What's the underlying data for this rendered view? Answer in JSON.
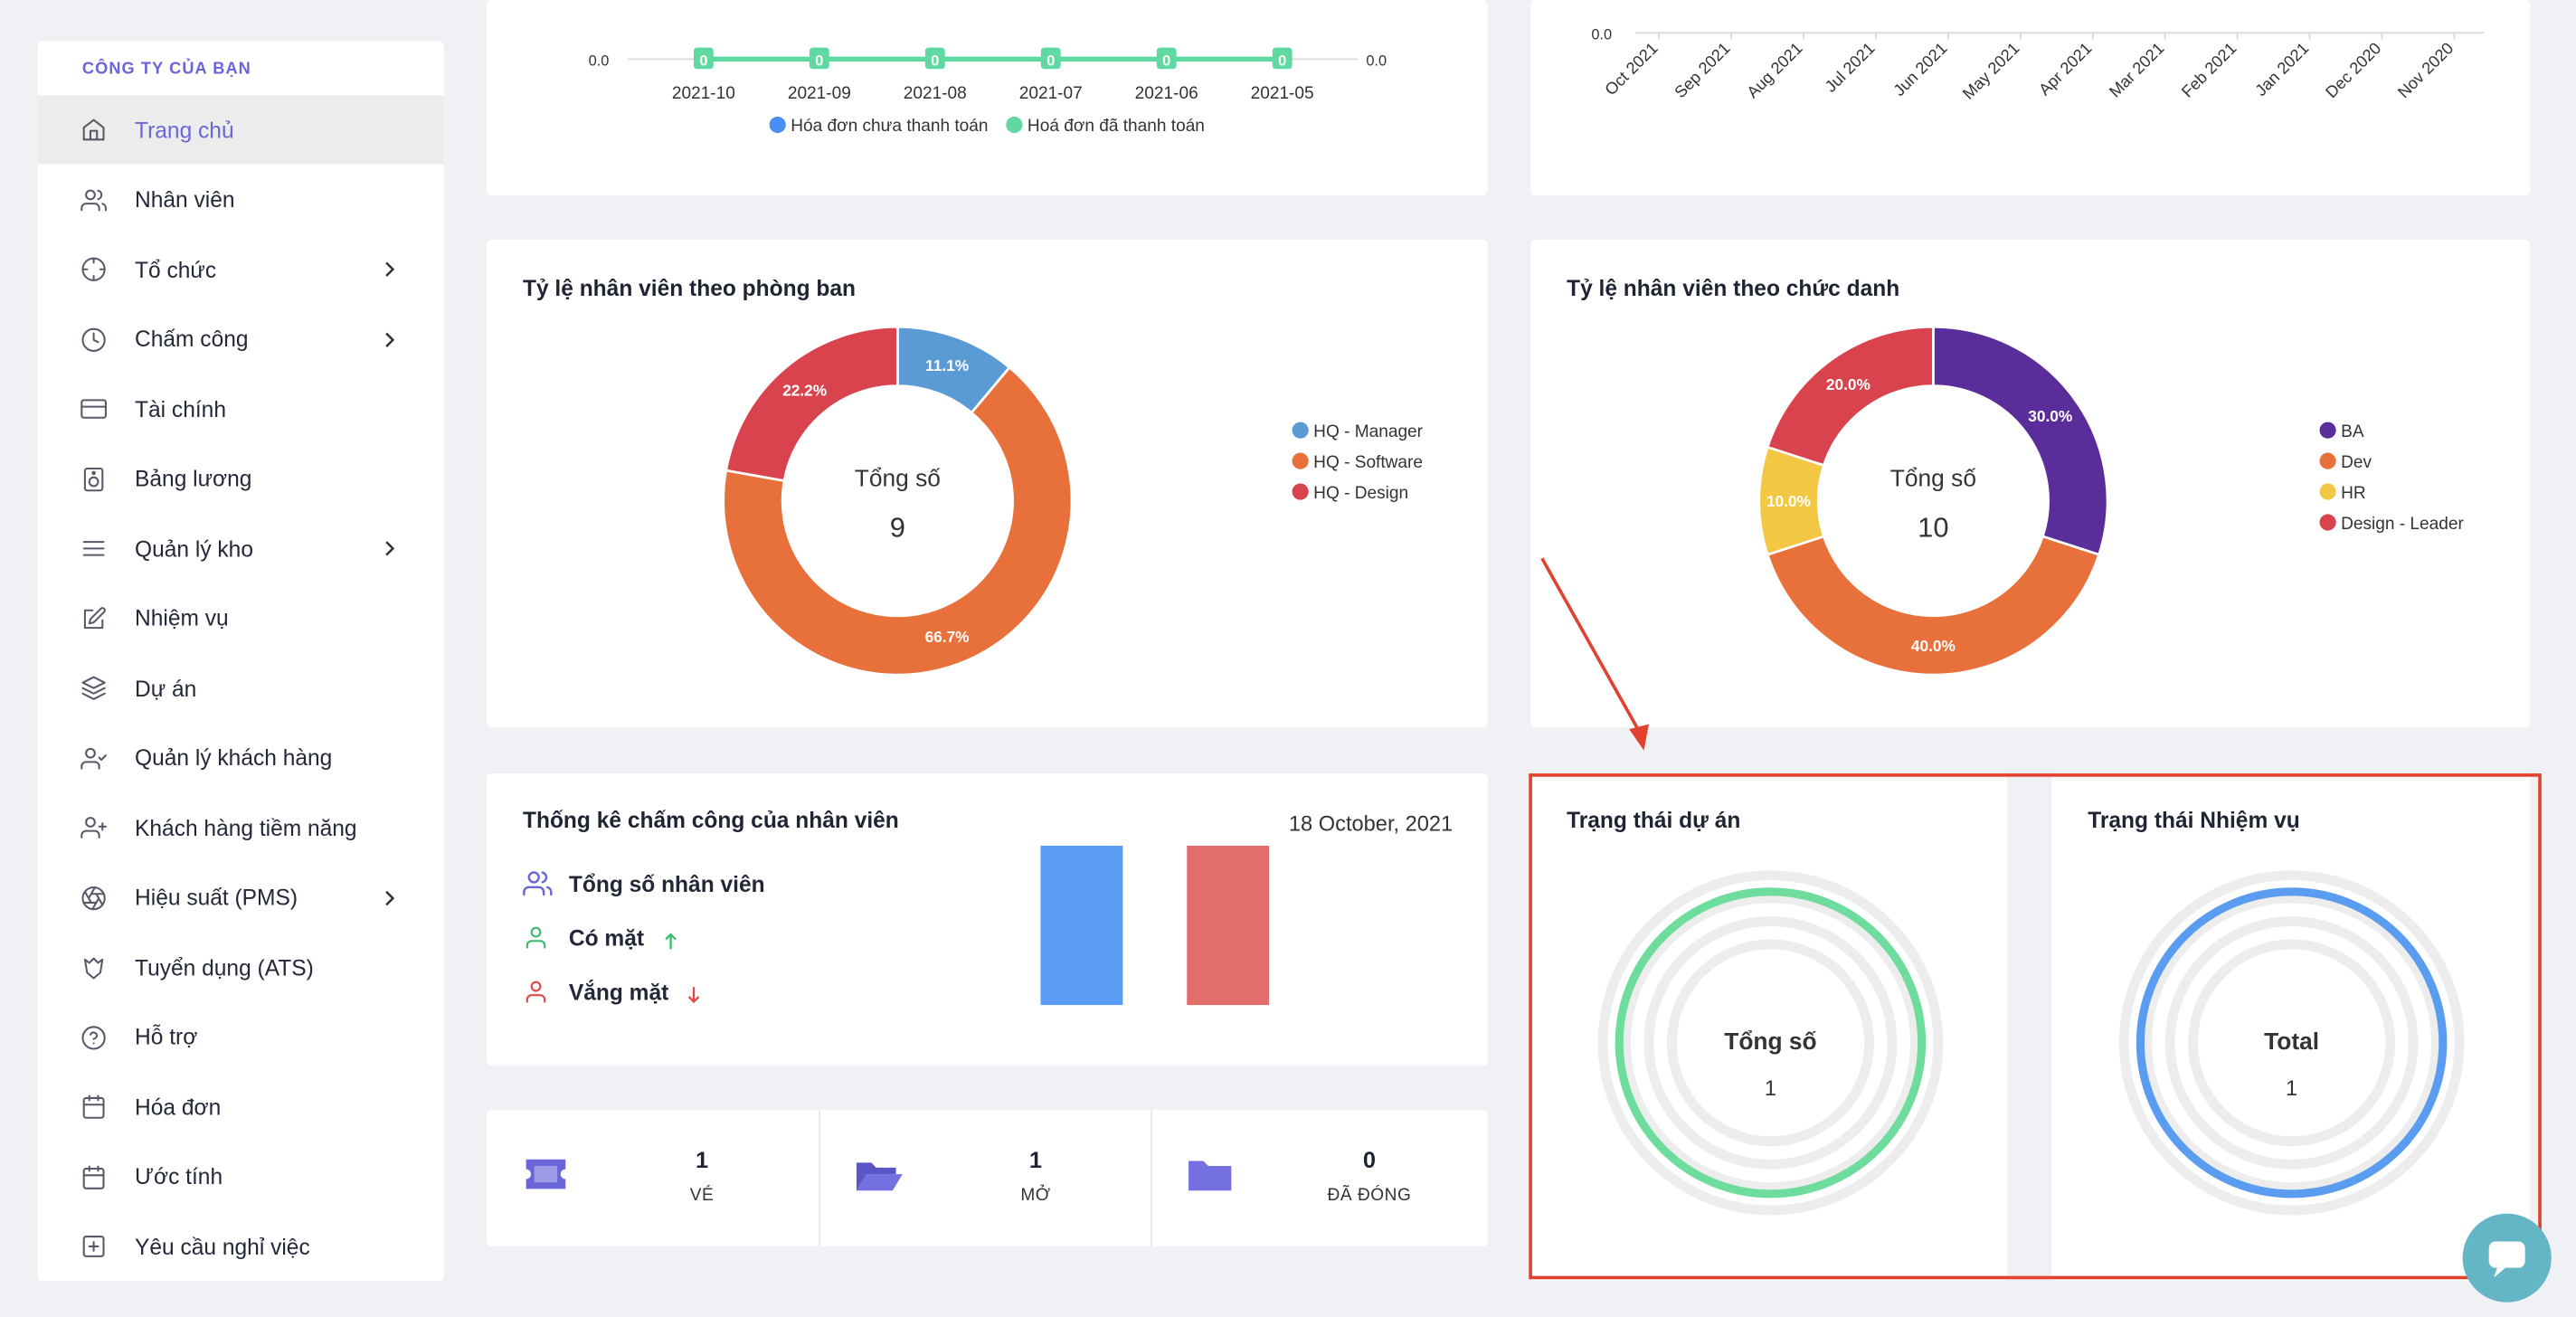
{
  "sidebar": {
    "company": "CÔNG TY CỦA BẠN",
    "items": [
      {
        "label": "Trang chủ",
        "icon": "home-icon",
        "active": true,
        "submenu": false
      },
      {
        "label": "Nhân viên",
        "icon": "users-icon",
        "submenu": false
      },
      {
        "label": "Tổ chức",
        "icon": "crosshair-icon",
        "submenu": true
      },
      {
        "label": "Chấm công",
        "icon": "clock-icon",
        "submenu": true
      },
      {
        "label": "Tài chính",
        "icon": "credit-card-icon",
        "submenu": false
      },
      {
        "label": "Bảng lương",
        "icon": "speaker-icon",
        "submenu": false
      },
      {
        "label": "Quản lý kho",
        "icon": "menu-icon",
        "submenu": true
      },
      {
        "label": "Nhiệm vụ",
        "icon": "edit-icon",
        "submenu": false
      },
      {
        "label": "Dự án",
        "icon": "layers-icon",
        "submenu": false
      },
      {
        "label": "Quản lý khách hàng",
        "icon": "user-check-icon",
        "submenu": false
      },
      {
        "label": "Khách hàng tiềm năng",
        "icon": "user-plus-icon",
        "submenu": false
      },
      {
        "label": "Hiệu suất (PMS)",
        "icon": "aperture-icon",
        "submenu": true
      },
      {
        "label": "Tuyển dụng (ATS)",
        "icon": "hexagon-icon",
        "submenu": false
      },
      {
        "label": "Hỗ trợ",
        "icon": "help-circle-icon",
        "submenu": false
      },
      {
        "label": "Hóa đơn",
        "icon": "calendar-icon",
        "submenu": false
      },
      {
        "label": "Ước tính",
        "icon": "calendar-icon",
        "submenu": false
      },
      {
        "label": "Yêu cầu nghỉ việc",
        "icon": "plus-square-icon",
        "submenu": false
      }
    ]
  },
  "invoice_chart": {
    "chart_data": {
      "type": "line",
      "x": [
        "2021-10",
        "2021-09",
        "2021-08",
        "2021-07",
        "2021-06",
        "2021-05"
      ],
      "series": [
        {
          "name": "Hóa đơn chưa thanh toán",
          "values": [
            0,
            0,
            0,
            0,
            0,
            0
          ],
          "color": "#4a8ef5"
        },
        {
          "name": "Hoá đơn đã thanh toán",
          "values": [
            0,
            0,
            0,
            0,
            0,
            0
          ],
          "color": "#5fd9a0"
        }
      ],
      "y_left_tick": "0.0",
      "y_right_tick": "0.0",
      "point_labels": [
        "0",
        "0",
        "0",
        "0",
        "0",
        "0"
      ]
    }
  },
  "monthly_chart": {
    "chart_data": {
      "type": "line",
      "x": [
        "Oct 2021",
        "Sep 2021",
        "Aug 2021",
        "Jul 2021",
        "Jun 2021",
        "May 2021",
        "Apr 2021",
        "Mar 2021",
        "Feb 2021",
        "Jan 2021",
        "Dec 2020",
        "Nov 2020"
      ],
      "y_tick": "0.0"
    }
  },
  "dept_chart": {
    "title": "Tỷ lệ nhân viên theo phòng ban",
    "center_label": "Tổng số",
    "center_value": "9",
    "chart_data": {
      "type": "pie",
      "labels": [
        "HQ - Manager",
        "HQ - Software",
        "HQ - Design"
      ],
      "values": [
        11.1,
        66.7,
        22.2
      ],
      "value_labels": [
        "11.1%",
        "66.7%",
        "22.2%"
      ],
      "colors": [
        "#5b9bd5",
        "#e8703a",
        "#d9434e"
      ]
    }
  },
  "position_chart": {
    "title": "Tỷ lệ nhân viên theo chức danh",
    "center_label": "Tổng số",
    "center_value": "10",
    "chart_data": {
      "type": "pie",
      "labels": [
        "BA",
        "Dev",
        "HR",
        "Design - Leader"
      ],
      "values": [
        30.0,
        40.0,
        10.0,
        20.0
      ],
      "value_labels": [
        "30.0%",
        "40.0%",
        "10.0%",
        "20.0%"
      ],
      "colors": [
        "#5b2d9a",
        "#e8703a",
        "#f2c744",
        "#d9434e"
      ]
    }
  },
  "attendance": {
    "title": "Thống kê chấm công của nhân viên",
    "date": "18 October, 2021",
    "total_label": "Tổng số nhân viên",
    "present_label": "Có mặt",
    "absent_label": "Vắng mặt",
    "bar_colors": [
      "#5a9cf5",
      "#e26d6b"
    ]
  },
  "tickets": {
    "items": [
      {
        "value": "1",
        "label": "VÉ",
        "icon": "ticket-icon"
      },
      {
        "value": "1",
        "label": "MỞ",
        "icon": "folder-open-icon"
      },
      {
        "value": "0",
        "label": "ĐÃ ĐÓNG",
        "icon": "folder-icon"
      }
    ]
  },
  "project_status": {
    "title": "Trạng thái dự án",
    "center_label": "Tổng số",
    "center_value": "1",
    "ring_color": "#6ddc9c"
  },
  "task_status": {
    "title": "Trạng thái Nhiệm vụ",
    "center_label": "Total",
    "center_value": "1",
    "ring_color": "#5a9cf0"
  },
  "accent_colors": {
    "highlight": "#e2412f",
    "brand": "#6b66d8"
  }
}
